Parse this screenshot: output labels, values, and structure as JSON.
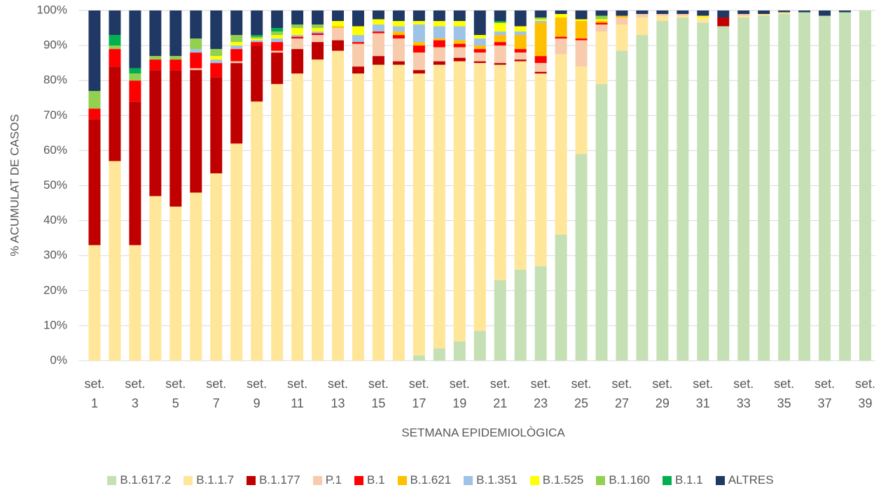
{
  "chart_data": {
    "type": "stacked_bar_100",
    "y_label": "% ACUMULAT DE CASOS",
    "x_label": "SETMANA EPIDEMIOLÒGICA",
    "categories": [
      "set. 1",
      null,
      "set. 3",
      null,
      "set. 5",
      null,
      "set. 7",
      null,
      "set. 9",
      null,
      "set. 11",
      null,
      "set. 13",
      null,
      "set. 15",
      null,
      "set. 17",
      null,
      "set. 19",
      null,
      "set. 21",
      null,
      "set. 23",
      null,
      "set. 25",
      null,
      "set. 27",
      null,
      "set. 29",
      null,
      "set. 31",
      null,
      "set. 33",
      null,
      "set. 35",
      null,
      "set. 37",
      null,
      "set. 39"
    ],
    "ylim": [
      0,
      100
    ],
    "yticks": [
      {
        "value": 0,
        "label": "0%"
      },
      {
        "value": 10,
        "label": "10%"
      },
      {
        "value": 20,
        "label": "20%"
      },
      {
        "value": 30,
        "label": "30%"
      },
      {
        "value": 40,
        "label": "40%"
      },
      {
        "value": 50,
        "label": "50%"
      },
      {
        "value": 60,
        "label": "60%"
      },
      {
        "value": 70,
        "label": "70%"
      },
      {
        "value": 80,
        "label": "80%"
      },
      {
        "value": 90,
        "label": "90%"
      },
      {
        "value": 100,
        "label": "100%"
      }
    ],
    "grid": true,
    "legend": "bottom",
    "series": [
      {
        "name": "B.1.617.2",
        "color": "#c5e0b4",
        "values": [
          0,
          0,
          0,
          0,
          0,
          0,
          0,
          0,
          0,
          0,
          0,
          0,
          0,
          0,
          0,
          0,
          1.5,
          3.5,
          5.5,
          8.5,
          23,
          26,
          27,
          36,
          59,
          79,
          88.5,
          93,
          97,
          98,
          96.5,
          95.5,
          98,
          98.5,
          99,
          99.5,
          98.5,
          99.5,
          100
        ]
      },
      {
        "name": "B.1.1.7",
        "color": "#ffe699",
        "values": [
          33,
          57,
          33,
          47,
          44,
          48,
          53.5,
          62,
          74,
          79,
          82,
          86,
          88.5,
          82,
          84.5,
          84.5,
          80.5,
          81,
          80,
          76.5,
          61.5,
          59.5,
          55,
          51.5,
          25,
          15,
          7.5,
          5,
          1.5,
          0.5,
          1.5,
          0,
          0.5,
          0.5,
          0.5,
          0,
          0,
          0,
          0
        ]
      },
      {
        "name": "B.1.177",
        "color": "#c00000",
        "values": [
          36,
          27,
          41,
          36,
          39,
          35,
          27.5,
          23,
          16,
          9,
          7,
          5,
          3,
          2,
          2.5,
          1,
          1,
          1,
          1,
          0.5,
          0.5,
          0.5,
          0.5,
          0,
          0,
          0,
          0,
          0,
          0,
          0,
          0,
          2.5,
          0,
          0,
          0,
          0,
          0,
          0,
          0
        ]
      },
      {
        "name": "P.1",
        "color": "#f8cbad",
        "values": [
          0,
          0,
          0,
          0,
          0,
          0.5,
          0,
          0.5,
          0,
          0.5,
          3,
          2,
          3.5,
          6.5,
          6.5,
          6.5,
          5,
          4,
          3,
          2.5,
          5,
          2,
          2.5,
          4.5,
          7.5,
          2,
          2,
          1,
          0.5,
          0.5,
          0,
          0,
          0.5,
          0,
          0,
          0,
          0,
          0,
          0
        ]
      },
      {
        "name": "B.1",
        "color": "#ff0000",
        "values": [
          3,
          5,
          6,
          3,
          3,
          4.5,
          4,
          3.5,
          1,
          2.5,
          0.5,
          0.5,
          0,
          0.5,
          0.5,
          1,
          2,
          2,
          1,
          1,
          1,
          1,
          2,
          0.5,
          0.5,
          0.5,
          0,
          0,
          0,
          0,
          0,
          0,
          0,
          0,
          0,
          0,
          0,
          0,
          0
        ]
      },
      {
        "name": "B.1.621",
        "color": "#ffc000",
        "values": [
          0,
          0,
          0,
          0,
          0,
          0,
          0,
          0,
          0,
          0,
          0,
          0,
          0.5,
          0,
          0,
          1,
          1,
          0.5,
          1,
          1,
          2,
          4,
          9.5,
          5.5,
          5,
          0.5,
          0.5,
          0,
          0,
          0,
          0,
          0,
          0,
          0,
          0,
          0,
          0,
          0,
          0
        ]
      },
      {
        "name": "B.1.351",
        "color": "#9dc3e6",
        "values": [
          0,
          0,
          0,
          0,
          0,
          1,
          1,
          1,
          0.5,
          1,
          0.5,
          0.5,
          0,
          2,
          2,
          1.5,
          5,
          3.5,
          4,
          2,
          1,
          1,
          0.5,
          0,
          0,
          0,
          0,
          0,
          0,
          0,
          0,
          0,
          0,
          0,
          0,
          0,
          0,
          0,
          0
        ]
      },
      {
        "name": "B.1.525",
        "color": "#ffff00",
        "values": [
          0,
          0,
          0,
          0,
          0,
          0,
          1,
          1,
          0.5,
          1,
          2,
          1,
          1.5,
          2.5,
          1.5,
          1.5,
          1,
          1.5,
          1.5,
          1,
          2.5,
          1.5,
          0.5,
          1,
          0.5,
          0.5,
          0,
          0,
          0,
          0,
          0.5,
          0,
          0,
          0,
          0,
          0,
          0,
          0,
          0
        ]
      },
      {
        "name": "B.1.160",
        "color": "#92d050",
        "values": [
          5,
          1,
          2,
          1,
          1,
          3,
          2,
          2,
          0.5,
          1,
          1,
          1,
          0,
          0,
          0,
          0,
          0,
          0,
          0,
          0,
          0,
          0,
          0.5,
          0,
          0,
          1,
          0,
          0,
          0,
          0,
          0,
          0,
          0,
          0,
          0,
          0,
          0,
          0,
          0
        ]
      },
      {
        "name": "B.1.1",
        "color": "#00b050",
        "values": [
          0,
          3,
          1.5,
          0,
          0,
          0,
          0,
          0,
          0.5,
          1,
          0,
          0,
          0,
          0,
          0,
          0,
          0,
          0,
          0,
          0,
          0.5,
          0,
          0,
          0,
          0,
          0,
          0,
          0,
          0,
          0,
          0,
          0,
          0,
          0,
          0,
          0,
          0,
          0,
          0
        ]
      },
      {
        "name": "ALTRES",
        "color": "#203864",
        "values": [
          23,
          7,
          16.5,
          13,
          13,
          8,
          11,
          7,
          7,
          5,
          4,
          4,
          3,
          4.5,
          2.5,
          3,
          3,
          3,
          3,
          7,
          3,
          4.5,
          2,
          1,
          2.5,
          1.5,
          1.5,
          1,
          1,
          1,
          1.5,
          2,
          1,
          1,
          0.5,
          0.5,
          1.5,
          0.5,
          0
        ]
      }
    ]
  }
}
